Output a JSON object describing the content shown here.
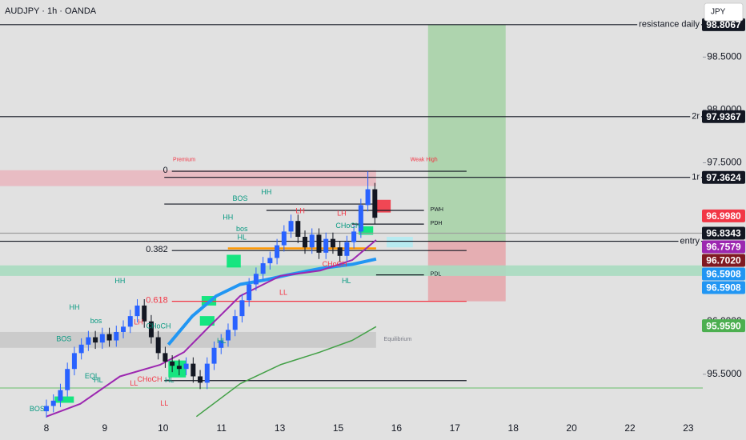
{
  "chart_data": {
    "type": "candlestick",
    "title": "AUDJPY · 1h · OANDA",
    "currency": "JPY",
    "categories": [
      "8",
      "9",
      "10",
      "11",
      "13",
      "15",
      "16",
      "17",
      "18",
      "20",
      "22",
      "23"
    ],
    "ylim": [
      95.09,
      99.04
    ],
    "yticks": [
      {
        "value": 95.5,
        "label": "95.5000"
      },
      {
        "value": 96,
        "label": "96.0000"
      },
      {
        "value": 97.5,
        "label": "97.5000"
      },
      {
        "value": 98,
        "label": "98.0000"
      },
      {
        "value": 98.5,
        "label": "98.5000"
      }
    ],
    "up_color": "#2962ff",
    "down_color": "#131722",
    "open": [
      95.15,
      95.2,
      95.25,
      95.35,
      95.55,
      95.7,
      95.78,
      95.85,
      95.8,
      95.88,
      95.82,
      95.9,
      95.95,
      96.05,
      96.15,
      96.0,
      95.85,
      95.7,
      95.62,
      95.58,
      95.55,
      95.6,
      95.48,
      95.42,
      95.6,
      95.75,
      95.82,
      95.92,
      96.05,
      96.2,
      96.35,
      96.45,
      96.55,
      96.6,
      96.72,
      96.85,
      96.95,
      96.8,
      96.7,
      96.82,
      96.65,
      96.78,
      96.7,
      96.62,
      96.75,
      96.85,
      97.1,
      97.25
    ],
    "high": [
      95.26,
      95.31,
      95.41,
      95.61,
      95.76,
      95.84,
      95.91,
      95.91,
      95.94,
      95.94,
      95.96,
      96.01,
      96.11,
      96.21,
      96.21,
      96.06,
      95.91,
      95.76,
      95.68,
      95.64,
      95.66,
      95.66,
      95.54,
      95.66,
      95.81,
      95.88,
      95.98,
      96.11,
      96.26,
      96.41,
      96.51,
      96.61,
      96.66,
      96.78,
      96.91,
      97.01,
      97.01,
      96.86,
      96.88,
      96.88,
      96.84,
      96.84,
      96.76,
      96.81,
      96.91,
      97.16,
      97.42,
      97.31
    ],
    "low": [
      95.09,
      95.14,
      95.19,
      95.29,
      95.49,
      95.64,
      95.72,
      95.74,
      95.74,
      95.76,
      95.76,
      95.84,
      95.89,
      95.99,
      95.94,
      95.79,
      95.64,
      95.56,
      95.52,
      95.49,
      95.49,
      95.42,
      95.36,
      95.36,
      95.54,
      95.69,
      95.76,
      95.86,
      95.99,
      96.14,
      96.29,
      96.39,
      96.49,
      96.54,
      96.66,
      96.79,
      96.74,
      96.64,
      96.64,
      96.59,
      96.59,
      96.64,
      96.56,
      96.56,
      96.69,
      96.79,
      97.04,
      96.92
    ],
    "close": [
      95.2,
      95.25,
      95.35,
      95.55,
      95.7,
      95.78,
      95.85,
      95.8,
      95.88,
      95.82,
      95.9,
      95.95,
      96.05,
      96.15,
      96.0,
      95.85,
      95.7,
      95.62,
      95.58,
      95.55,
      95.6,
      95.48,
      95.42,
      95.6,
      95.75,
      95.82,
      95.92,
      96.05,
      96.2,
      96.35,
      96.45,
      96.55,
      96.6,
      96.72,
      96.85,
      96.95,
      96.8,
      96.7,
      96.82,
      96.65,
      96.78,
      96.7,
      96.62,
      96.75,
      96.85,
      97.1,
      97.25,
      96.98
    ],
    "lines": [
      {
        "color": "#2196f3",
        "width": 4,
        "x": [
          2.09,
          2.5,
          2.91,
          3.32,
          3.73,
          4.14,
          4.69,
          5.24,
          5.65
        ],
        "values": [
          95.78,
          96.05,
          96.24,
          96.35,
          96.39,
          96.44,
          96.5,
          96.54,
          96.59
        ]
      },
      {
        "color": "#9c27b0",
        "width": 2,
        "x": [
          0,
          0.58,
          1.26,
          1.95,
          2.36,
          2.77,
          3.32,
          4.01,
          4.69,
          5.24,
          5.65
        ],
        "values": [
          95.1,
          95.22,
          95.48,
          95.59,
          95.71,
          95.94,
          96.24,
          96.43,
          96.48,
          96.58,
          96.77
        ]
      },
      {
        "color": "#43a047",
        "width": 1.5,
        "x": [
          2.57,
          3.32,
          4.01,
          4.69,
          5.24,
          5.65
        ],
        "values": [
          95.1,
          95.41,
          95.59,
          95.71,
          95.82,
          95.95
        ]
      }
    ],
    "zones": [
      {
        "x": [
          6.54,
          7.87
        ],
        "from": 96.7579,
        "to": 98.8067,
        "color": "#a9d3a9"
      },
      {
        "x": [
          6.54,
          7.87
        ],
        "from": 96.19,
        "to": 96.7579,
        "color": "#e6a9ad"
      },
      {
        "x": [
          -0.8,
          5.65
        ],
        "from": 97.28,
        "to": 97.43,
        "color": "#e9b8c0"
      },
      {
        "x": [
          -0.8,
          11.25
        ],
        "from": 96.43,
        "to": 96.53,
        "color": "#a8dcc0"
      },
      {
        "x": [
          -0.8,
          5.65
        ],
        "from": 95.75,
        "to": 95.9,
        "color": "#c9c9c9"
      },
      {
        "x": [
          5.65,
          5.9
        ],
        "from": 97.03,
        "to": 97.15,
        "color": "#f23645"
      },
      {
        "x": [
          5.83,
          6.28
        ],
        "from": 96.7,
        "to": 96.8,
        "color": "#b2ebf2"
      },
      {
        "x": [
          2.66,
          2.91
        ],
        "from": 96.15,
        "to": 96.24,
        "color": "#00e676"
      },
      {
        "x": [
          2.63,
          2.88
        ],
        "from": 95.96,
        "to": 96.05,
        "color": "#00e676"
      },
      {
        "x": [
          2.09,
          2.39
        ],
        "from": 95.47,
        "to": 95.63,
        "color": "#00e676"
      },
      {
        "x": [
          0.14,
          0.47
        ],
        "from": 95.23,
        "to": 95.29,
        "color": "#00e676"
      },
      {
        "x": [
          3.09,
          3.33
        ],
        "from": 96.51,
        "to": 96.63,
        "color": "#00e676"
      },
      {
        "x": [
          5.35,
          5.6
        ],
        "from": 96.82,
        "to": 96.9,
        "color": "#00e676"
      }
    ],
    "levels": [
      {
        "label": "resistance daily",
        "value": 98.8067,
        "x": [
          -0.8,
          11.25
        ],
        "color": "#131722",
        "label_at": "axis"
      },
      {
        "label": "2r",
        "value": 97.9367,
        "x": [
          -0.8,
          11.25
        ],
        "color": "#131722",
        "label_at": "axis"
      },
      {
        "label": "1r",
        "value": 97.3624,
        "x": [
          2.02,
          11.25
        ],
        "color": "#131722",
        "label_at": "axis"
      },
      {
        "label": "entry",
        "value": 96.7579,
        "x": [
          -0.8,
          11.25
        ],
        "color": "#131722",
        "label_at": "axis"
      },
      {
        "label": "0",
        "value": 97.42,
        "x": [
          2.15,
          7.2
        ],
        "color": "#131722",
        "label_at": "start"
      },
      {
        "label": "0.382",
        "value": 96.67,
        "x": [
          2.15,
          7.2
        ],
        "color": "#131722",
        "label_at": "start"
      },
      {
        "label": "0.618",
        "value": 96.19,
        "x": [
          2.15,
          7.2
        ],
        "color": "#f23645",
        "label_at": "start"
      },
      {
        "label": "PWH",
        "value": 97.05,
        "x": [
          3.77,
          6.47
        ],
        "color": "#131722",
        "label_at": "end"
      },
      {
        "label": "PDH",
        "value": 96.92,
        "x": [
          5.24,
          6.47
        ],
        "color": "#131722",
        "label_at": "end"
      },
      {
        "label": "PDL",
        "value": 96.44,
        "x": [
          5.65,
          6.47
        ],
        "color": "#131722",
        "label_at": "end"
      },
      {
        "value": 97.11,
        "x": [
          2.02,
          5.65
        ],
        "color": "#131722"
      },
      {
        "value": 95.44,
        "x": [
          2.02,
          7.2
        ],
        "color": "#131722"
      },
      {
        "value": 95.37,
        "x": [
          -0.8,
          11.25
        ],
        "color": "#81c784"
      },
      {
        "value": 96.8343,
        "x": [
          -0.8,
          11.25
        ],
        "color": "#9e9e9e"
      },
      {
        "value": 96.69,
        "x": [
          3.11,
          5.65
        ],
        "color": "#ff9800"
      }
    ],
    "annotations": [
      {
        "text": "Premium",
        "x": 2.36,
        "y": 97.53,
        "color": "#f23645"
      },
      {
        "text": "Weak High",
        "x": 6.47,
        "y": 97.53,
        "color": "#f23645"
      },
      {
        "text": "Equilibrium",
        "x": 6.02,
        "y": 95.83,
        "color": "#787b86"
      },
      {
        "text": "BOS",
        "x": 3.32,
        "y": 97.16,
        "color": "#089981"
      },
      {
        "text": "HH",
        "x": 3.77,
        "y": 97.22,
        "color": "#089981"
      },
      {
        "text": "HH",
        "x": 3.11,
        "y": 96.98,
        "color": "#089981"
      },
      {
        "text": "LH",
        "x": 4.35,
        "y": 97.04,
        "color": "#f23645"
      },
      {
        "text": "LH",
        "x": 5.06,
        "y": 97.02,
        "color": "#f23645"
      },
      {
        "text": "CHoCH",
        "x": 5.17,
        "y": 96.9,
        "color": "#089981"
      },
      {
        "text": "bos",
        "x": 3.35,
        "y": 96.87,
        "color": "#089981"
      },
      {
        "text": "HL",
        "x": 3.35,
        "y": 96.79,
        "color": "#089981"
      },
      {
        "text": "CHoCH",
        "x": 4.94,
        "y": 96.54,
        "color": "#f23645"
      },
      {
        "text": "HL",
        "x": 5.14,
        "y": 96.38,
        "color": "#089981"
      },
      {
        "text": "LL",
        "x": 4.06,
        "y": 96.27,
        "color": "#f23645"
      },
      {
        "text": "HH",
        "x": 1.26,
        "y": 96.38,
        "color": "#089981"
      },
      {
        "text": "HH",
        "x": 0.48,
        "y": 96.13,
        "color": "#089981"
      },
      {
        "text": "bos",
        "x": 0.85,
        "y": 96.0,
        "color": "#089981"
      },
      {
        "text": "BOS",
        "x": 0.3,
        "y": 95.83,
        "color": "#089981"
      },
      {
        "text": "LH",
        "x": 1.58,
        "y": 95.99,
        "color": "#f23645"
      },
      {
        "text": "CHoCH",
        "x": 1.92,
        "y": 95.95,
        "color": "#089981"
      },
      {
        "text": "HL",
        "x": 3.0,
        "y": 95.81,
        "color": "#089981"
      },
      {
        "text": "EQL",
        "x": 0.78,
        "y": 95.48,
        "color": "#089981"
      },
      {
        "text": "HL",
        "x": 0.89,
        "y": 95.44,
        "color": "#089981"
      },
      {
        "text": "CHoCH",
        "x": 1.77,
        "y": 95.45,
        "color": "#f23645"
      },
      {
        "text": "HL",
        "x": 2.11,
        "y": 95.44,
        "color": "#089981"
      },
      {
        "text": "LL",
        "x": 1.5,
        "y": 95.41,
        "color": "#f23645"
      },
      {
        "text": "LL",
        "x": 2.02,
        "y": 95.22,
        "color": "#f23645"
      },
      {
        "text": "BOS",
        "x": -0.16,
        "y": 95.17,
        "color": "#089981"
      }
    ],
    "price_tags": [
      {
        "value": 98.8067,
        "label": "98.8067",
        "color": "#131722"
      },
      {
        "value": 97.9367,
        "label": "97.9367",
        "color": "#131722"
      },
      {
        "value": 97.3624,
        "label": "97.3624",
        "color": "#131722"
      },
      {
        "value": 96.998,
        "label": "96.9980",
        "color": "#f23645"
      },
      {
        "value": 96.8343,
        "label": "96.8343",
        "color": "#131722"
      },
      {
        "value": 96.7579,
        "label": "96.7579",
        "color": "#9c27b0"
      },
      {
        "value": 96.702,
        "label": "96.7020",
        "color": "#801922"
      },
      {
        "value": 96.5908,
        "label": "96.5908",
        "color": "#2196f3"
      },
      {
        "value": 96.5908,
        "label": "96.5908",
        "color": "#2196f3"
      },
      {
        "value": 95.959,
        "label": "95.9590",
        "color": "#4caf50"
      }
    ]
  }
}
